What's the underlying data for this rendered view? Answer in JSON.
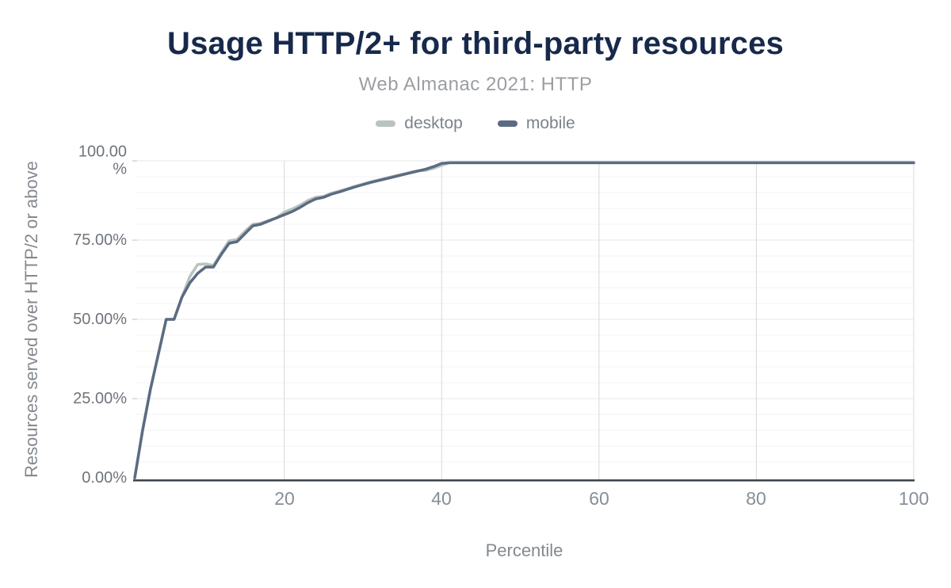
{
  "title": "Usage HTTP/2+ for third-party resources",
  "subtitle": "Web Almanac 2021: HTTP",
  "colors": {
    "title": "#17294b",
    "subtitle": "#9b9ea3",
    "desktop_line": "#b9c3bf",
    "mobile_line": "#5b6b82",
    "axis_line": "#3f464e",
    "grid_minor": "#f3f3f5",
    "grid_major": "#e7e7ea",
    "grid_vertical": "#d8d8db",
    "tick_stub": "#c6c9cd"
  },
  "chart_data": {
    "type": "line",
    "title": "Usage HTTP/2+ for third-party resources",
    "subtitle": "Web Almanac 2021: HTTP",
    "xlabel": "Percentile",
    "ylabel": "Resources served over HTTP/2 or above",
    "xlim": [
      1,
      100
    ],
    "ylim": [
      0,
      100
    ],
    "grid": "on",
    "legend_position": "top-center",
    "xtick_values": [
      20,
      40,
      60,
      80,
      100
    ],
    "xticks": [
      "20",
      "40",
      "60",
      "80",
      "100"
    ],
    "ytick_values": [
      100,
      75,
      50,
      25,
      0
    ],
    "yticks": [
      "100.00\n%",
      "75.00%",
      "50.00%",
      "25.00%",
      "0.00%"
    ],
    "x_unit": "percentile 1-100, one point per percentile",
    "y_unit": "percent of third-party resources served over HTTP/2 or above",
    "series": [
      {
        "name": "desktop",
        "color": "#b9c3bf",
        "values": [
          0,
          15,
          28,
          39,
          50,
          50,
          57,
          63.5,
          67.3,
          67.5,
          67,
          71,
          74.8,
          75.2,
          77.8,
          80,
          80.3,
          81.2,
          82,
          83.8,
          84.8,
          86,
          87.5,
          88.5,
          88.8,
          89.8,
          90.5,
          91.2,
          92,
          92.7,
          93.4,
          94,
          94.6,
          95.2,
          95.8,
          96.4,
          96.9,
          97,
          97.7,
          98.6,
          99.4,
          99.4,
          99.4,
          99.4,
          99.4,
          99.4,
          99.4,
          99.4,
          99.4,
          99.4,
          99.4,
          99.4,
          99.4,
          99.4,
          99.4,
          99.4,
          99.4,
          99.4,
          99.4,
          99.4,
          99.4,
          99.4,
          99.4,
          99.4,
          99.4,
          99.4,
          99.4,
          99.4,
          99.4,
          99.4,
          99.4,
          99.4,
          99.4,
          99.4,
          99.4,
          99.4,
          99.4,
          99.4,
          99.4,
          99.4,
          99.4,
          99.4,
          99.4,
          99.4,
          99.4,
          99.4,
          99.4,
          99.4,
          99.4,
          99.4,
          99.4,
          99.4,
          99.4,
          99.4,
          99.4,
          99.4,
          99.4,
          99.4,
          99.4,
          99.4
        ]
      },
      {
        "name": "mobile",
        "color": "#5b6b82",
        "values": [
          0,
          15,
          28,
          39,
          50,
          50,
          57,
          61.5,
          64.5,
          66.5,
          66.5,
          70.5,
          74,
          74.5,
          77,
          79.5,
          80,
          81,
          82,
          83,
          84,
          85.3,
          86.8,
          88,
          88.5,
          89.5,
          90.2,
          91,
          91.8,
          92.5,
          93.2,
          93.8,
          94.4,
          95,
          95.6,
          96.2,
          96.8,
          97.4,
          98.2,
          99.2,
          99.4,
          99.4,
          99.4,
          99.4,
          99.4,
          99.4,
          99.4,
          99.4,
          99.4,
          99.4,
          99.4,
          99.4,
          99.4,
          99.4,
          99.4,
          99.4,
          99.4,
          99.4,
          99.4,
          99.4,
          99.4,
          99.4,
          99.4,
          99.4,
          99.4,
          99.4,
          99.4,
          99.4,
          99.4,
          99.4,
          99.4,
          99.4,
          99.4,
          99.4,
          99.4,
          99.4,
          99.4,
          99.4,
          99.4,
          99.4,
          99.4,
          99.4,
          99.4,
          99.4,
          99.4,
          99.4,
          99.4,
          99.4,
          99.4,
          99.4,
          99.4,
          99.4,
          99.4,
          99.4,
          99.4,
          99.4,
          99.4,
          99.4,
          99.4,
          99.4
        ]
      }
    ]
  }
}
